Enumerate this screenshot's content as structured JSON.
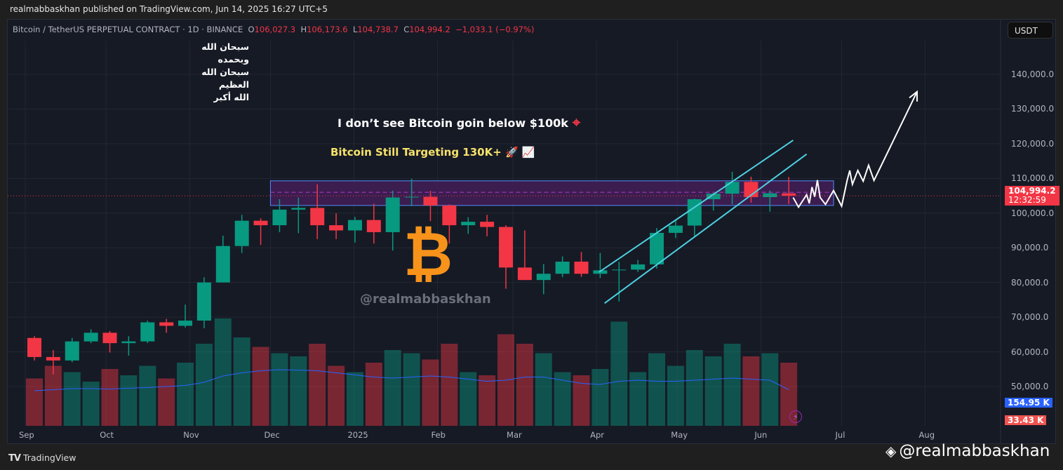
{
  "header": {
    "publisher": "realmabbaskhan published on TradingView.com, Jun 14, 2025 16:27 UTC+5"
  },
  "legend": {
    "symbol": "Bitcoin / TetherUS PERPETUAL CONTRACT · 1D · BINANCE",
    "o_label": "O",
    "o": "106,027.3",
    "h_label": "H",
    "h": "106,173.6",
    "l_label": "L",
    "l": "104,738.7",
    "c_label": "C",
    "c": "104,994.2",
    "change": "−1,033.1 (−0.97%)"
  },
  "currency_button": "USDT",
  "annotations": {
    "arabic_lines": [
      "سبحان الله وبحمده",
      "سبحان الله العظيم",
      "الله أكبر"
    ],
    "note1": "I don’t see Bitcoin goin below $100k",
    "note2": "Bitcoin Still Targeting 130K+ 🚀 📈",
    "watermark": "@realmabbaskhan",
    "btc_symbol": "₿",
    "target_icon": "⌖"
  },
  "price_badge": {
    "price": "104,994.2",
    "countdown": "12:32:59"
  },
  "volume_ma_badge": "154.95 K",
  "volume_badge": "33.43 K",
  "footer": {
    "brand_mark": "TV",
    "brand": "TradingView",
    "credit": "@realmabbaskhan"
  },
  "colors": {
    "up": "#089981",
    "down": "#f23645",
    "zone": "#4a1f5e",
    "zone_border": "#4f8cff",
    "channel": "#4dd0e1",
    "projection": "#ffffff",
    "ma": "#2962ff"
  },
  "chart_data": {
    "type": "candlestick",
    "title": "Bitcoin / TetherUS PERPETUAL CONTRACT · 1D · BINANCE",
    "ylim": [
      45000,
      150000
    ],
    "yticks": [
      50000,
      60000,
      70000,
      80000,
      90000,
      100000,
      110000,
      120000,
      130000,
      140000
    ],
    "ytick_labels": [
      "50,000.0",
      "60,000.0",
      "70,000.0",
      "80,000.0",
      "90,000.0",
      "100,000.0",
      "110,000.0",
      "120,000.0",
      "130,000.0",
      "140,000.0"
    ],
    "xticks": [
      {
        "label": "Sep",
        "day": 0
      },
      {
        "label": "Oct",
        "day": 30
      },
      {
        "label": "Nov",
        "day": 61
      },
      {
        "label": "Dec",
        "day": 91
      },
      {
        "label": "2025",
        "day": 122
      },
      {
        "label": "Feb",
        "day": 153
      },
      {
        "label": "Mar",
        "day": 181
      },
      {
        "label": "Apr",
        "day": 212
      },
      {
        "label": "May",
        "day": 242
      },
      {
        "label": "Jun",
        "day": 273
      },
      {
        "label": "Jul",
        "day": 303
      },
      {
        "label": "Aug",
        "day": 334
      }
    ],
    "note": "weekly approximation of daily candles; day = days since Sep 1 2024",
    "candles": [
      {
        "day": 0,
        "o": 64000,
        "h": 64500,
        "l": 57500,
        "c": 58500,
        "v": 150
      },
      {
        "day": 7,
        "o": 58500,
        "h": 60500,
        "l": 53500,
        "c": 57500,
        "v": 190
      },
      {
        "day": 14,
        "o": 57500,
        "h": 64000,
        "l": 57000,
        "c": 63000,
        "v": 170
      },
      {
        "day": 21,
        "o": 63000,
        "h": 66500,
        "l": 62500,
        "c": 65500,
        "v": 140
      },
      {
        "day": 28,
        "o": 65500,
        "h": 66000,
        "l": 59800,
        "c": 62500,
        "v": 180
      },
      {
        "day": 35,
        "o": 62500,
        "h": 64500,
        "l": 58900,
        "c": 63000,
        "v": 160
      },
      {
        "day": 42,
        "o": 63000,
        "h": 69000,
        "l": 62500,
        "c": 68500,
        "v": 190
      },
      {
        "day": 49,
        "o": 68500,
        "h": 69500,
        "l": 65500,
        "c": 67500,
        "v": 150
      },
      {
        "day": 56,
        "o": 67500,
        "h": 73600,
        "l": 67000,
        "c": 69000,
        "v": 200
      },
      {
        "day": 63,
        "o": 69000,
        "h": 81500,
        "l": 66800,
        "c": 80000,
        "v": 260
      },
      {
        "day": 70,
        "o": 80000,
        "h": 93500,
        "l": 80000,
        "c": 90500,
        "v": 340
      },
      {
        "day": 77,
        "o": 90500,
        "h": 99500,
        "l": 88500,
        "c": 97800,
        "v": 280
      },
      {
        "day": 84,
        "o": 97800,
        "h": 98500,
        "l": 90800,
        "c": 96500,
        "v": 250
      },
      {
        "day": 91,
        "o": 96500,
        "h": 104000,
        "l": 94500,
        "c": 101000,
        "v": 230
      },
      {
        "day": 98,
        "o": 101000,
        "h": 104500,
        "l": 94200,
        "c": 101500,
        "v": 220
      },
      {
        "day": 105,
        "o": 101500,
        "h": 108300,
        "l": 92500,
        "c": 96500,
        "v": 260
      },
      {
        "day": 112,
        "o": 96500,
        "h": 99900,
        "l": 92500,
        "c": 95000,
        "v": 190
      },
      {
        "day": 119,
        "o": 95000,
        "h": 98900,
        "l": 91500,
        "c": 98000,
        "v": 170
      },
      {
        "day": 126,
        "o": 98000,
        "h": 102700,
        "l": 91200,
        "c": 94500,
        "v": 200
      },
      {
        "day": 133,
        "o": 94500,
        "h": 106500,
        "l": 89200,
        "c": 104500,
        "v": 240
      },
      {
        "day": 140,
        "o": 104500,
        "h": 109900,
        "l": 102000,
        "c": 104700,
        "v": 230
      },
      {
        "day": 147,
        "o": 104700,
        "h": 106400,
        "l": 97700,
        "c": 102200,
        "v": 210
      },
      {
        "day": 154,
        "o": 102200,
        "h": 102500,
        "l": 91200,
        "c": 96500,
        "v": 260
      },
      {
        "day": 161,
        "o": 96500,
        "h": 98800,
        "l": 94000,
        "c": 97500,
        "v": 170
      },
      {
        "day": 168,
        "o": 97500,
        "h": 99500,
        "l": 93300,
        "c": 96000,
        "v": 160
      },
      {
        "day": 175,
        "o": 96000,
        "h": 96500,
        "l": 78200,
        "c": 84300,
        "v": 290
      },
      {
        "day": 182,
        "o": 84300,
        "h": 95000,
        "l": 81500,
        "c": 80700,
        "v": 260
      },
      {
        "day": 189,
        "o": 80700,
        "h": 85300,
        "l": 76600,
        "c": 82500,
        "v": 230
      },
      {
        "day": 196,
        "o": 82500,
        "h": 87500,
        "l": 81500,
        "c": 86000,
        "v": 170
      },
      {
        "day": 203,
        "o": 86000,
        "h": 88800,
        "l": 81600,
        "c": 82500,
        "v": 160
      },
      {
        "day": 210,
        "o": 82500,
        "h": 88500,
        "l": 81300,
        "c": 83500,
        "v": 180
      },
      {
        "day": 217,
        "o": 83500,
        "h": 86000,
        "l": 74500,
        "c": 83700,
        "v": 330
      },
      {
        "day": 224,
        "o": 83700,
        "h": 86500,
        "l": 83000,
        "c": 85200,
        "v": 170
      },
      {
        "day": 231,
        "o": 85200,
        "h": 95700,
        "l": 84000,
        "c": 94300,
        "v": 230
      },
      {
        "day": 238,
        "o": 94300,
        "h": 97900,
        "l": 92800,
        "c": 96400,
        "v": 190
      },
      {
        "day": 245,
        "o": 96400,
        "h": 104200,
        "l": 93400,
        "c": 104000,
        "v": 240
      },
      {
        "day": 252,
        "o": 104000,
        "h": 105800,
        "l": 100700,
        "c": 105600,
        "v": 220
      },
      {
        "day": 259,
        "o": 105600,
        "h": 111900,
        "l": 102500,
        "c": 109000,
        "v": 260
      },
      {
        "day": 266,
        "o": 109000,
        "h": 110500,
        "l": 103000,
        "c": 104600,
        "v": 220
      },
      {
        "day": 273,
        "o": 104600,
        "h": 106500,
        "l": 100400,
        "c": 105700,
        "v": 230
      },
      {
        "day": 280,
        "o": 105700,
        "h": 110400,
        "l": 102600,
        "c": 104994,
        "v": 200
      }
    ],
    "volume_ma": [
      150,
      155,
      160,
      160,
      158,
      162,
      165,
      170,
      175,
      190,
      220,
      235,
      245,
      250,
      248,
      245,
      235,
      225,
      215,
      210,
      215,
      220,
      215,
      205,
      195,
      200,
      215,
      215,
      200,
      185,
      180,
      195,
      200,
      195,
      195,
      200,
      205,
      210,
      205,
      200,
      155
    ],
    "zone": {
      "top": 109300,
      "bottom": 102200,
      "mid": 106000,
      "start_day": 91,
      "end_day": 300
    },
    "channel": {
      "upper": [
        [
          213,
          83000
        ],
        [
          285,
          121000
        ]
      ],
      "lower": [
        [
          215,
          74000
        ],
        [
          290,
          117000
        ]
      ]
    },
    "projection": [
      [
        285,
        104500
      ],
      [
        287,
        101700
      ],
      [
        290,
        105300
      ],
      [
        291,
        102800
      ],
      [
        292,
        107500
      ],
      [
        293,
        104700
      ],
      [
        294,
        109500
      ],
      [
        295,
        104500
      ],
      [
        297,
        102500
      ],
      [
        300,
        106500
      ],
      [
        303,
        102000
      ],
      [
        305,
        109300
      ],
      [
        306,
        112300
      ],
      [
        307,
        108300
      ],
      [
        309,
        112300
      ],
      [
        311,
        109200
      ],
      [
        313,
        113800
      ],
      [
        315,
        109400
      ],
      [
        331,
        135000
      ]
    ],
    "last_price": 104994.2
  }
}
